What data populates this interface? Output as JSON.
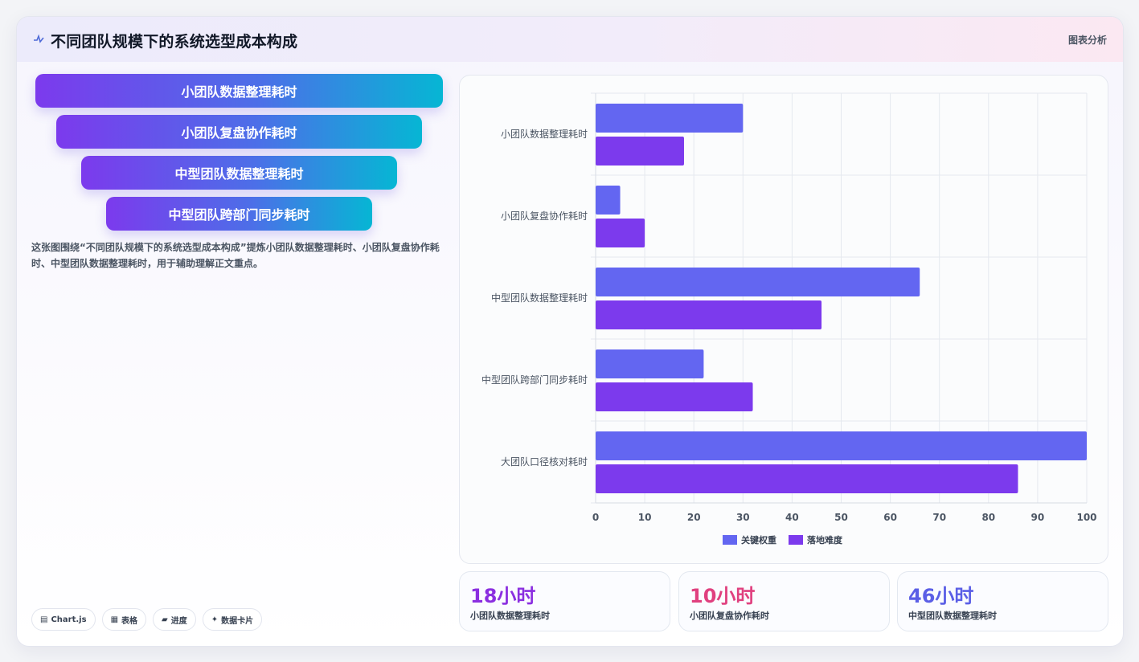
{
  "header": {
    "title": "不同团队规模下的系统选型成本构成",
    "tag": "图表分析"
  },
  "funnel": [
    "小团队数据整理耗时",
    "小团队复盘协作耗时",
    "中型团队数据整理耗时",
    "中型团队跨部门同步耗时"
  ],
  "description": "这张图围绕“不同团队规模下的系统选型成本构成”提炼小团队数据整理耗时、小团队复盘协作耗时、中型团队数据整理耗时，用于辅助理解正文重点。",
  "chips": [
    {
      "icon": "chart-icon",
      "label": "Chart.js"
    },
    {
      "icon": "table-icon",
      "label": "表格"
    },
    {
      "icon": "progress-icon",
      "label": "进度"
    },
    {
      "icon": "sparkle-icon",
      "label": "数据卡片"
    }
  ],
  "stats": [
    {
      "value": "18小时",
      "label": "小团队数据整理耗时",
      "color": "#8b2fe0"
    },
    {
      "value": "10小时",
      "label": "小团队复盘协作耗时",
      "color": "#e0407f"
    },
    {
      "value": "46小时",
      "label": "中型团队数据整理耗时",
      "color": "#5b5fe6"
    }
  ],
  "chart_data": {
    "type": "bar",
    "orientation": "horizontal",
    "categories": [
      "小团队数据整理耗时",
      "小团队复盘协作耗时",
      "中型团队数据整理耗时",
      "中型团队跨部门同步耗时",
      "大团队口径核对耗时"
    ],
    "series": [
      {
        "name": "关键权重",
        "color": "#6366f1",
        "values": [
          30,
          5,
          66,
          22,
          100
        ]
      },
      {
        "name": "落地难度",
        "color": "#7c3aed",
        "values": [
          18,
          10,
          46,
          32,
          86
        ]
      }
    ],
    "xlim": [
      0,
      100
    ],
    "xticks": [
      0,
      10,
      20,
      30,
      40,
      50,
      60,
      70,
      80,
      90,
      100
    ],
    "grid": true,
    "legend_position": "bottom"
  }
}
